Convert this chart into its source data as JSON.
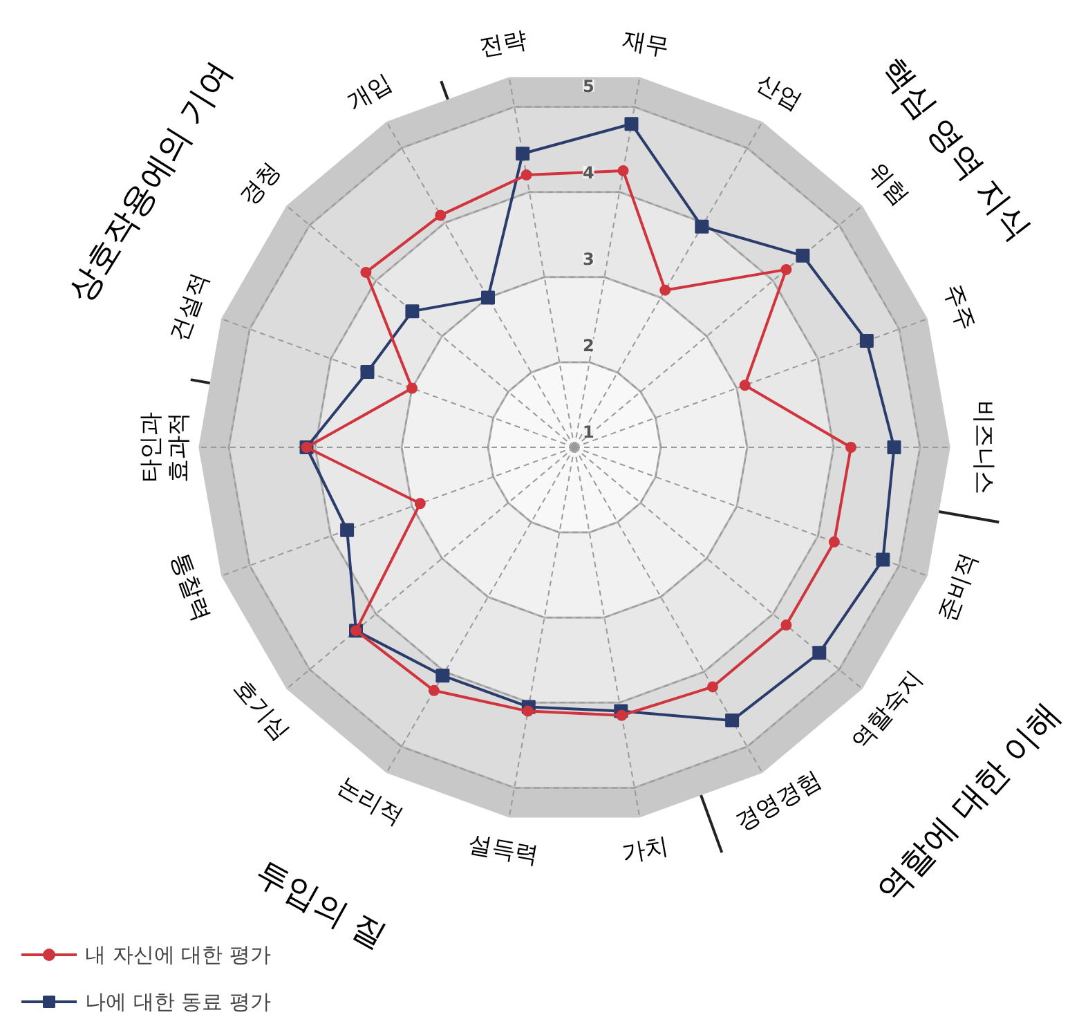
{
  "chart_data": {
    "type": "radar",
    "categories": [
      "재무",
      "산업",
      "위험",
      "주주",
      "비즈니스",
      "준비적",
      "역할숙지",
      "경영경험",
      "가치",
      "설득력",
      "논리적",
      "호기심",
      "통찰력",
      "타인과\n효과적",
      "건설적",
      "경청",
      "개입",
      "전략"
    ],
    "series": [
      {
        "name": "내 자신에 대한 평가",
        "color": "#d0343c",
        "marker": "circle",
        "values": [
          4.25,
          3.1,
          4.2,
          3.1,
          4.2,
          4.2,
          4.2,
          4.2,
          4.15,
          4.1,
          4.25,
          4.3,
          2.9,
          4.1,
          3.0,
          4.15,
          4.1,
          4.2
        ]
      },
      {
        "name": "나에 대한 동료 평가",
        "color": "#2a3c6c",
        "marker": "square",
        "values": [
          4.8,
          3.95,
          4.45,
          4.6,
          4.7,
          4.8,
          4.7,
          4.65,
          4.1,
          4.05,
          4.05,
          4.3,
          3.8,
          4.1,
          3.55,
          3.45,
          3.0,
          4.45
        ]
      }
    ],
    "ylim": [
      1,
      5.35
    ],
    "yticks": [
      1,
      2,
      3,
      4,
      5
    ],
    "grid": true,
    "legend": "bottom left",
    "annotations": [
      "핵심 영역 지식",
      "역할에 대한 이해",
      "투입의 질",
      "상호작용에의 기여"
    ]
  }
}
